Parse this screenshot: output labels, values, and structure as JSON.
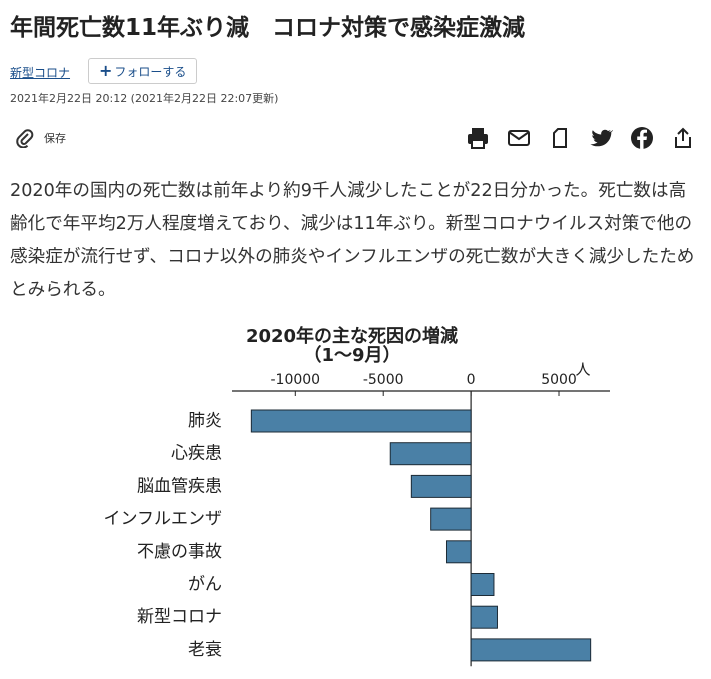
{
  "header": {
    "title": "年間死亡数11年ぶり減　コロナ対策で感染症激減",
    "tag": "新型コロナ",
    "follow_button": "フォローする",
    "timestamp": "2021年2月22日 20:12 (2021年2月22日 22:07更新)",
    "save_label": "保存"
  },
  "article": {
    "paragraph": "2020年の国内の死亡数は前年より約9千人減少したことが22日分かった。死亡数は高齢化で年平均2万人程度増えており、減少は11年ぶり。新型コロナウイルス対策で他の感染症が流行せず、コロナ以外の肺炎やインフルエンザの死亡数が大きく減少したためとみられる。"
  },
  "chart_data": {
    "type": "barh",
    "title": "2020年の主な死因の増減",
    "subtitle": "（1～9月）",
    "xlabel": "人",
    "categories": [
      "肺炎",
      "心疾患",
      "脳血管疾患",
      "インフルエンザ",
      "不慮の事故",
      "がん",
      "新型コロナ",
      "老衰"
    ],
    "values": [
      -12500,
      -4600,
      -3400,
      -2300,
      -1400,
      1300,
      1500,
      6800
    ],
    "color": "#4a80a6",
    "xlim": [
      -13600,
      7900
    ],
    "xticks": [
      -10000,
      -5000,
      0,
      5000
    ]
  }
}
